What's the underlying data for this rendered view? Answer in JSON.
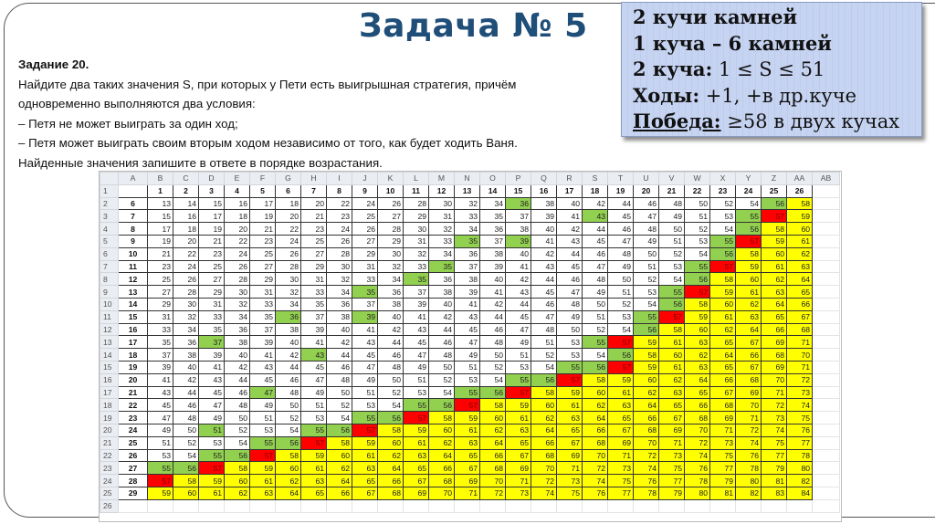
{
  "slide": {
    "title": "Задача № 5",
    "task": {
      "heading": "Задание 20.",
      "lines": [
        "Найдите два таких значения S, при которых у Пети есть выигрышная стратегия, причём",
        "одновременно выполняются два условия:",
        "– Петя не может выиграть за один ход;",
        "– Петя может выиграть своим вторым ходом независимо от того, как будет ходить Ваня.",
        "Найденные значения запишите в ответе в порядке возрастания."
      ]
    },
    "info_box": {
      "line1": "2 кучи камней",
      "line2": "1 куча – 6 камней",
      "line3_label": "2 куча:",
      "line3_value": " 1 ≤ S ≤ 51",
      "line4_label": "Ходы:",
      "line4_value": " +1, +в др.куче",
      "line5_label": "Победа:",
      "line5_value": " ≥58 в двух кучах"
    }
  },
  "colors": {
    "green": "#92D050",
    "red": "#FF0000",
    "yellow": "#FFFF00",
    "title": "#1F4E79",
    "info_bg": "#C6D4F2"
  },
  "spreadsheet": {
    "column_letters": [
      "A",
      "B",
      "C",
      "D",
      "E",
      "F",
      "G",
      "H",
      "I",
      "J",
      "K",
      "L",
      "M",
      "N",
      "O",
      "P",
      "Q",
      "R",
      "S",
      "T",
      "U",
      "V",
      "W",
      "X",
      "Y",
      "Z",
      "AA",
      "AB"
    ],
    "header_row": [
      1,
      2,
      3,
      4,
      5,
      6,
      7,
      8,
      9,
      10,
      11,
      12,
      13,
      14,
      15,
      16,
      17,
      18,
      19,
      20,
      21,
      22,
      23,
      24,
      25,
      26
    ],
    "rows": [
      {
        "a": 6,
        "values": [
          13,
          14,
          15,
          16,
          17,
          18,
          20,
          22,
          24,
          26,
          28,
          30,
          32,
          34,
          36,
          38,
          40,
          42,
          44,
          46,
          48,
          50,
          52,
          54,
          56,
          58
        ],
        "colors": "wwwwwwwwwwwwwwgwwwwwwwwwgy"
      },
      {
        "a": 7,
        "values": [
          15,
          16,
          17,
          18,
          19,
          20,
          21,
          23,
          25,
          27,
          29,
          31,
          33,
          35,
          37,
          39,
          41,
          43,
          45,
          47,
          49,
          51,
          53,
          55,
          57,
          59
        ],
        "colors": "wwwwwwwwwwwwwwwwwgwwwwwgry"
      },
      {
        "a": 8,
        "values": [
          17,
          18,
          19,
          20,
          21,
          22,
          23,
          24,
          26,
          28,
          30,
          32,
          34,
          36,
          38,
          40,
          42,
          44,
          46,
          48,
          50,
          52,
          54,
          56,
          58,
          60
        ],
        "colors": "wwwwwwwwwwwwwwwwwwwwwwwgyy"
      },
      {
        "a": 9,
        "values": [
          19,
          20,
          21,
          22,
          23,
          24,
          25,
          26,
          27,
          29,
          31,
          33,
          35,
          37,
          39,
          41,
          43,
          45,
          47,
          49,
          51,
          53,
          55,
          57,
          59,
          61
        ],
        "colors": "wwwwwwwwwwwwgwgwwwwwwwgryy"
      },
      {
        "a": 10,
        "values": [
          21,
          22,
          23,
          24,
          25,
          26,
          27,
          28,
          29,
          30,
          32,
          34,
          36,
          38,
          40,
          42,
          44,
          46,
          48,
          50,
          52,
          54,
          56,
          58,
          60,
          62
        ],
        "colors": "wwwwwwwwwwwwwwwwwwwwwwgyyy"
      },
      {
        "a": 11,
        "values": [
          23,
          24,
          25,
          26,
          27,
          28,
          29,
          30,
          31,
          32,
          33,
          35,
          37,
          39,
          41,
          43,
          45,
          47,
          49,
          51,
          53,
          55,
          57,
          59,
          61,
          63
        ],
        "colors": "wwwwwwwwwwwgwwwwwwwwwgryyy"
      },
      {
        "a": 12,
        "values": [
          25,
          26,
          27,
          28,
          29,
          30,
          31,
          32,
          33,
          34,
          35,
          36,
          38,
          40,
          42,
          44,
          46,
          48,
          50,
          52,
          54,
          56,
          58,
          60,
          62,
          64
        ],
        "colors": "wwwwwwwwwwgwwwwwwwwwwgyyyy"
      },
      {
        "a": 13,
        "values": [
          27,
          28,
          29,
          30,
          31,
          32,
          33,
          34,
          35,
          36,
          37,
          38,
          39,
          41,
          43,
          45,
          47,
          49,
          51,
          53,
          55,
          57,
          59,
          61,
          63,
          65
        ],
        "colors": "wwwwwwwwgwwwwwwwwwwwgryyyy"
      },
      {
        "a": 14,
        "values": [
          29,
          30,
          31,
          32,
          33,
          34,
          35,
          36,
          37,
          38,
          39,
          40,
          41,
          42,
          44,
          46,
          48,
          50,
          52,
          54,
          56,
          58,
          60,
          62,
          64,
          66
        ],
        "colors": "wwwwwwwwwwwwwwwwwwwwgyyyyy"
      },
      {
        "a": 15,
        "values": [
          31,
          32,
          33,
          34,
          35,
          36,
          37,
          38,
          39,
          40,
          41,
          42,
          43,
          44,
          45,
          47,
          49,
          51,
          53,
          55,
          57,
          59,
          61,
          63,
          65,
          67
        ],
        "colors": "wwwwwgwwgwwwwwwwwwwgryyyyy"
      },
      {
        "a": 16,
        "values": [
          33,
          34,
          35,
          36,
          37,
          38,
          39,
          40,
          41,
          42,
          43,
          44,
          45,
          46,
          47,
          48,
          50,
          52,
          54,
          56,
          58,
          60,
          62,
          64,
          66,
          68
        ],
        "colors": "wwwwwwwwwwwwwwwwwwwgyyyyyy"
      },
      {
        "a": 17,
        "values": [
          35,
          36,
          37,
          38,
          39,
          40,
          41,
          42,
          43,
          44,
          45,
          46,
          47,
          48,
          49,
          51,
          53,
          55,
          57,
          59,
          61,
          63,
          65,
          67,
          69,
          71
        ],
        "colors": "wwgwwwwwwwwwwwwwwgryyyyyyy"
      },
      {
        "a": 18,
        "values": [
          37,
          38,
          39,
          40,
          41,
          42,
          43,
          44,
          45,
          46,
          47,
          48,
          49,
          50,
          51,
          52,
          53,
          54,
          56,
          58,
          60,
          62,
          64,
          66,
          68,
          70
        ],
        "colors": "wwwwwwgwwwwwwwwwwwgyyyyyyy"
      },
      {
        "a": 19,
        "values": [
          39,
          40,
          41,
          42,
          43,
          44,
          45,
          46,
          47,
          48,
          49,
          50,
          51,
          52,
          53,
          54,
          55,
          56,
          57,
          59,
          61,
          63,
          65,
          67,
          69,
          71
        ],
        "colors": "wwwwwwwwwwwwwwwwggryyyyyyy"
      },
      {
        "a": 20,
        "values": [
          41,
          42,
          43,
          44,
          45,
          46,
          47,
          48,
          49,
          50,
          51,
          52,
          53,
          54,
          55,
          56,
          57,
          58,
          59,
          60,
          62,
          64,
          66,
          68,
          70,
          72
        ],
        "colors": "wwwwwwwwwwwwwwggryyyyyyyyy"
      },
      {
        "a": 21,
        "values": [
          43,
          44,
          45,
          46,
          47,
          48,
          49,
          50,
          51,
          52,
          53,
          54,
          55,
          56,
          57,
          58,
          59,
          60,
          61,
          62,
          63,
          65,
          67,
          69,
          71,
          73
        ],
        "colors": "wwwwgwwwwwwwggryyyyyyyyyyy"
      },
      {
        "a": 22,
        "values": [
          45,
          46,
          47,
          48,
          49,
          50,
          51,
          52,
          53,
          54,
          55,
          56,
          57,
          58,
          59,
          60,
          61,
          62,
          63,
          64,
          65,
          66,
          68,
          70,
          72,
          74
        ],
        "colors": "wwwwwwwwwwggryyyyyyyyyyyyy"
      },
      {
        "a": 23,
        "values": [
          47,
          48,
          49,
          50,
          51,
          52,
          53,
          54,
          55,
          56,
          57,
          58,
          59,
          60,
          61,
          62,
          63,
          64,
          65,
          66,
          67,
          68,
          69,
          71,
          73,
          75
        ],
        "colors": "wwwwwwwwggryyyyyyyyyyyyyyy"
      },
      {
        "a": 24,
        "values": [
          49,
          50,
          51,
          52,
          53,
          54,
          55,
          56,
          57,
          58,
          59,
          60,
          61,
          62,
          63,
          64,
          65,
          66,
          67,
          68,
          69,
          70,
          71,
          72,
          74,
          76
        ],
        "colors": "wwgwwwggryyyyyyyyyyyyyyyyy"
      },
      {
        "a": 25,
        "values": [
          51,
          52,
          53,
          54,
          55,
          56,
          57,
          58,
          59,
          60,
          61,
          62,
          63,
          64,
          65,
          66,
          67,
          68,
          69,
          70,
          71,
          72,
          73,
          74,
          75,
          77
        ],
        "colors": "wwwwggryyyyyyyyyyyyyyyyyyy"
      },
      {
        "a": 26,
        "values": [
          53,
          54,
          55,
          56,
          57,
          58,
          59,
          60,
          61,
          62,
          63,
          64,
          65,
          66,
          67,
          68,
          69,
          70,
          71,
          72,
          73,
          74,
          75,
          76,
          77,
          78
        ],
        "colors": "wwggryyyyyyyyyyyyyyyyyyyyy"
      },
      {
        "a": 27,
        "values": [
          55,
          56,
          57,
          58,
          59,
          60,
          61,
          62,
          63,
          64,
          65,
          66,
          67,
          68,
          69,
          70,
          71,
          72,
          73,
          74,
          75,
          76,
          77,
          78,
          79,
          80
        ],
        "colors": "ggryyyyyyyyyyyyyyyyyyyyyyy"
      },
      {
        "a": 28,
        "values": [
          57,
          58,
          59,
          60,
          61,
          62,
          63,
          64,
          65,
          66,
          67,
          68,
          69,
          70,
          71,
          72,
          73,
          74,
          75,
          76,
          77,
          78,
          79,
          80,
          81,
          82
        ],
        "colors": "ryyyyyyyyyyyyyyyyyyyyyyyyy"
      },
      {
        "a": 29,
        "values": [
          59,
          60,
          61,
          62,
          63,
          64,
          65,
          66,
          67,
          68,
          69,
          70,
          71,
          72,
          73,
          74,
          75,
          76,
          77,
          78,
          79,
          80,
          81,
          82,
          83,
          84
        ],
        "colors": "yyyyyyyyyyyyyyyyyyyyyyyyyy"
      }
    ]
  }
}
